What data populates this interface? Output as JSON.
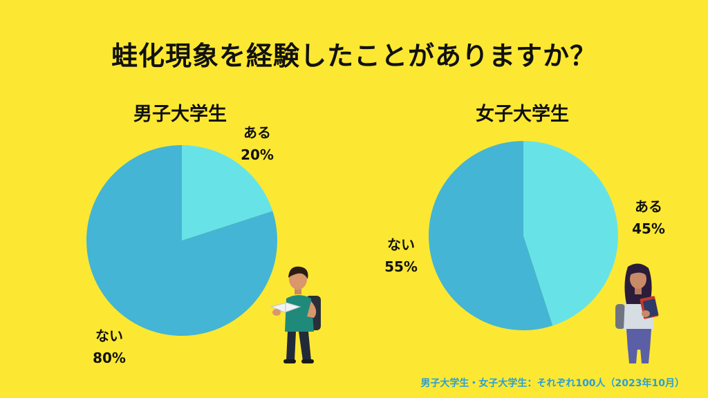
{
  "title": "蛙化現象を経験したことがありますか？",
  "footnote": "男子大学生・女子大学生：それぞれ100人（2023年10月）",
  "colors": {
    "background": "#fce832",
    "aru": "#67e3e8",
    "nai": "#44b5d4",
    "footnote": "#2a9fd6"
  },
  "chart_data": [
    {
      "type": "pie",
      "title": "男子大学生",
      "slices": [
        {
          "label": "ある",
          "value": 20,
          "value_label": "20%",
          "color": "#67e3e8"
        },
        {
          "label": "ない",
          "value": 80,
          "value_label": "80%",
          "color": "#44b5d4"
        }
      ]
    },
    {
      "type": "pie",
      "title": "女子大学生",
      "slices": [
        {
          "label": "ある",
          "value": 45,
          "value_label": "45%",
          "color": "#67e3e8"
        },
        {
          "label": "ない",
          "value": 55,
          "value_label": "55%",
          "color": "#44b5d4"
        }
      ]
    }
  ],
  "illustrations": [
    "male-student-reading-illustration",
    "female-student-holding-books-illustration"
  ]
}
